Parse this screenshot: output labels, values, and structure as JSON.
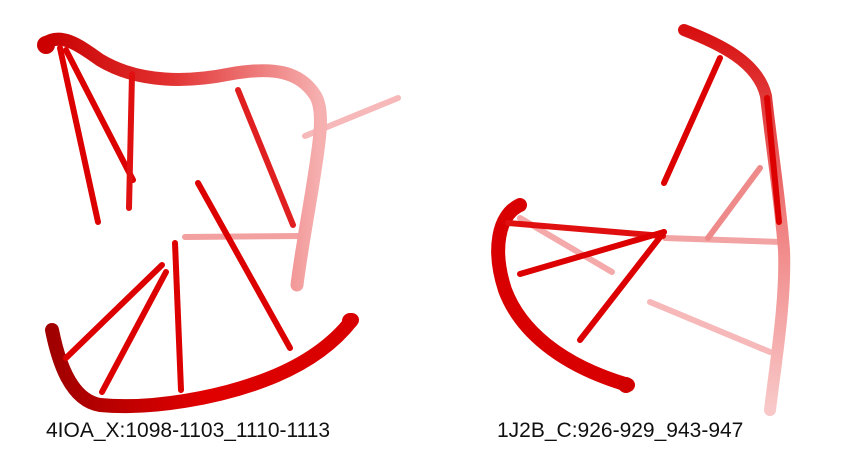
{
  "panels": [
    {
      "id": "4IOA_X",
      "label": "4IOA_X:1098-1103_1110-1113"
    },
    {
      "id": "1J2B_C",
      "label": "1J2B_C:926-929_943-947"
    }
  ],
  "colors": {
    "strand": "#dd0000",
    "strand_dark": "#b00000",
    "faded": "#f4a0a0",
    "background": "#ffffff"
  }
}
